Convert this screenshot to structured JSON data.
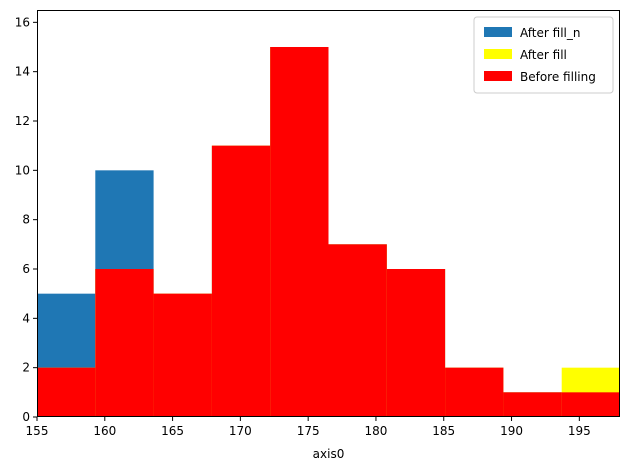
{
  "chart_data": {
    "type": "histogram",
    "xlabel": "axis0",
    "ylabel": "",
    "xlim": [
      155,
      198
    ],
    "ylim": [
      0,
      16.5
    ],
    "xticks": [
      155,
      160,
      165,
      170,
      175,
      180,
      185,
      190,
      195
    ],
    "yticks": [
      0,
      2,
      4,
      6,
      8,
      10,
      12,
      14,
      16
    ],
    "bin_edges": [
      155,
      159.3,
      163.6,
      167.9,
      172.2,
      176.5,
      180.8,
      185.1,
      189.4,
      193.7,
      198
    ],
    "legend_position": "top-right",
    "series": [
      {
        "name": "After fill_n",
        "color": "#1f77b4",
        "values": [
          5,
          10,
          5,
          11,
          15,
          7,
          6,
          2,
          1,
          1
        ]
      },
      {
        "name": "After fill",
        "color": "#ffff00",
        "values": [
          2,
          6,
          5,
          11,
          15,
          7,
          6,
          2,
          1,
          2
        ]
      },
      {
        "name": "Before filling",
        "color": "#ff0000",
        "values": [
          2,
          6,
          5,
          11,
          15,
          7,
          6,
          2,
          1,
          1
        ]
      }
    ]
  }
}
